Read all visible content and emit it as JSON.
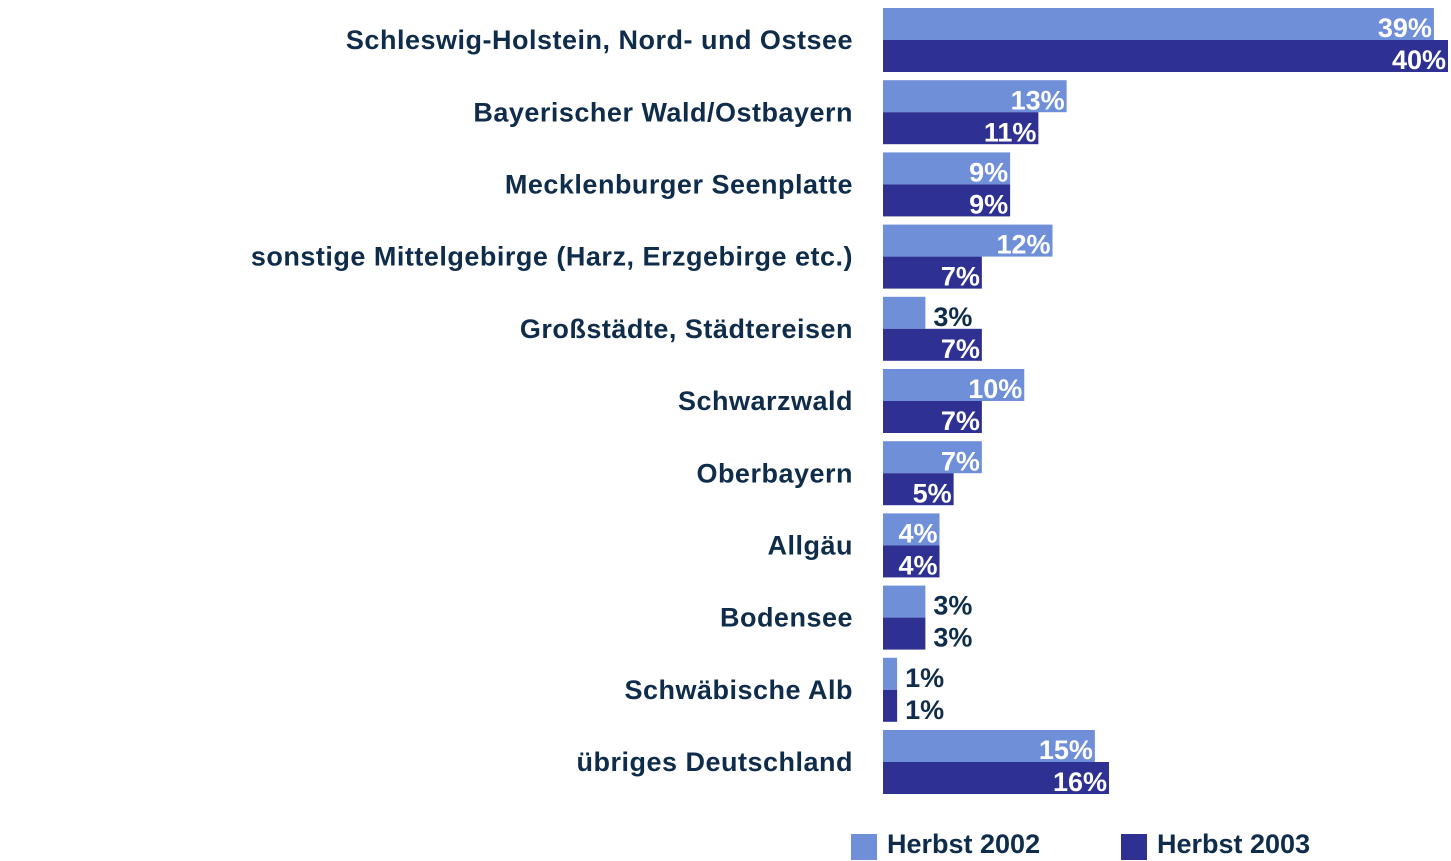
{
  "chart_data": {
    "type": "bar",
    "orientation": "horizontal",
    "categories": [
      "Schleswig-Holstein, Nord- und Ostsee",
      "Bayerischer Wald/Ostbayern",
      "Mecklenburger Seenplatte",
      "sonstige Mittelgebirge (Harz, Erzgebirge etc.)",
      "Großstädte, Städtereisen",
      "Schwarzwald",
      "Oberbayern",
      "Allgäu",
      "Bodensee",
      "Schwäbische Alb",
      "übriges Deutschland"
    ],
    "series": [
      {
        "name": "Herbst 2002",
        "color": "#6f8fd8",
        "values": [
          39,
          13,
          9,
          12,
          3,
          10,
          7,
          4,
          3,
          1,
          15
        ],
        "value_labels": [
          "39%",
          "13%",
          "9%",
          "12%",
          "3%",
          "10%",
          "7%",
          "4%",
          "3%",
          "1%",
          "15%"
        ]
      },
      {
        "name": "Herbst 2003",
        "color": "#2e3192",
        "values": [
          40,
          11,
          9,
          7,
          7,
          7,
          5,
          4,
          3,
          1,
          16
        ],
        "value_labels": [
          "40%",
          "11%",
          "9%",
          "7%",
          "7%",
          "7%",
          "5%",
          "4%",
          "3%",
          "1%",
          "16%"
        ]
      }
    ],
    "legend": "bottom"
  }
}
